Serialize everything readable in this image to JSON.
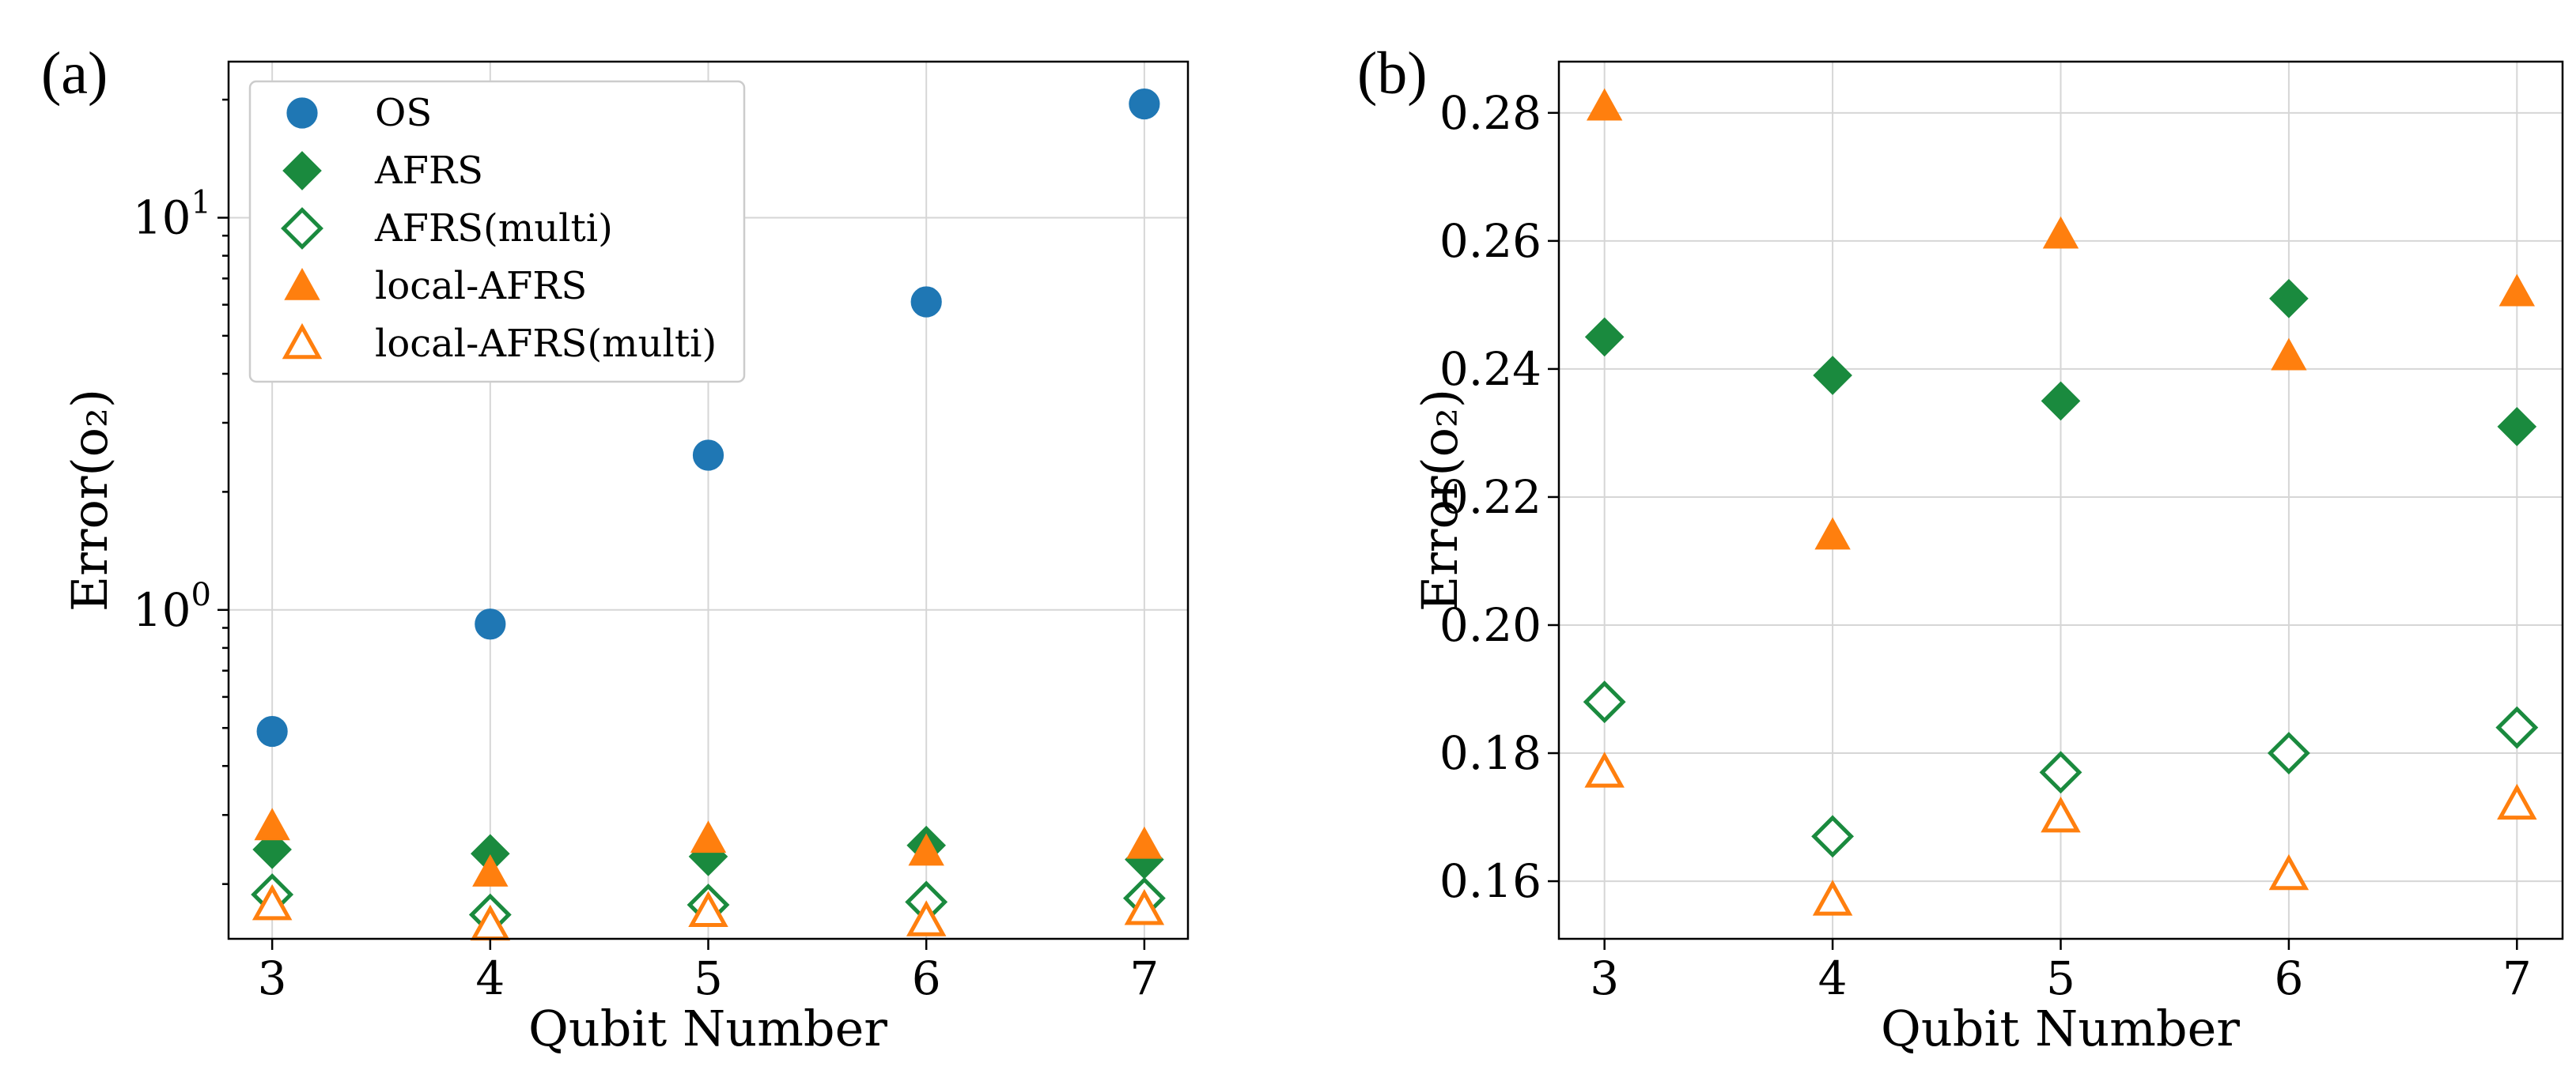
{
  "colors": {
    "OS": "#1f77b4",
    "AFRS": "#1a8a3e",
    "local-AFRS": "#ff7f0e"
  },
  "chart_data": [
    {
      "type": "scatter",
      "panel_label": "(a)",
      "xlabel": "Qubit Number",
      "ylabel": "Error(o₂)",
      "yscale": "log",
      "xlim": [
        2.8,
        7.2
      ],
      "ylim": [
        0.145,
        25
      ],
      "x_ticks": [
        3,
        4,
        5,
        6,
        7
      ],
      "y_ticks": [
        {
          "value": 1,
          "base": "10",
          "exp": "0"
        },
        {
          "value": 10,
          "base": "10",
          "exp": "1"
        }
      ],
      "grid": true,
      "legend_position": "upper-left",
      "series": [
        {
          "name": "OS",
          "marker": "circle",
          "fill": true,
          "color_key": "OS",
          "x": [
            3,
            4,
            5,
            6,
            7
          ],
          "y": [
            0.49,
            0.92,
            2.48,
            6.1,
            19.5
          ]
        },
        {
          "name": "AFRS",
          "marker": "diamond",
          "fill": true,
          "color_key": "AFRS",
          "x": [
            3,
            4,
            5,
            6,
            7
          ],
          "y": [
            0.245,
            0.239,
            0.235,
            0.251,
            0.231
          ]
        },
        {
          "name": "AFRS(multi)",
          "marker": "diamond",
          "fill": false,
          "color_key": "AFRS",
          "x": [
            3,
            4,
            5,
            6,
            7
          ],
          "y": [
            0.188,
            0.167,
            0.177,
            0.18,
            0.184
          ]
        },
        {
          "name": "local-AFRS",
          "marker": "triangle",
          "fill": true,
          "color_key": "local-AFRS",
          "x": [
            3,
            4,
            5,
            6,
            7
          ],
          "y": [
            0.281,
            0.214,
            0.261,
            0.242,
            0.252
          ]
        },
        {
          "name": "local-AFRS(multi)",
          "marker": "triangle",
          "fill": false,
          "color_key": "local-AFRS",
          "x": [
            3,
            4,
            5,
            6,
            7
          ],
          "y": [
            0.177,
            0.157,
            0.17,
            0.161,
            0.172
          ]
        }
      ]
    },
    {
      "type": "scatter",
      "panel_label": "(b)",
      "xlabel": "Qubit Number",
      "ylabel": "Error(o₂)",
      "yscale": "linear",
      "xlim": [
        2.8,
        7.2
      ],
      "ylim": [
        0.151,
        0.288
      ],
      "x_ticks": [
        3,
        4,
        5,
        6,
        7
      ],
      "y_ticks": [
        {
          "value": 0.16,
          "label": "0.16"
        },
        {
          "value": 0.18,
          "label": "0.18"
        },
        {
          "value": 0.2,
          "label": "0.20"
        },
        {
          "value": 0.22,
          "label": "0.22"
        },
        {
          "value": 0.24,
          "label": "0.24"
        },
        {
          "value": 0.26,
          "label": "0.26"
        },
        {
          "value": 0.28,
          "label": "0.28"
        }
      ],
      "grid": true,
      "series": [
        {
          "name": "AFRS",
          "marker": "diamond",
          "fill": true,
          "color_key": "AFRS",
          "x": [
            3,
            4,
            5,
            6,
            7
          ],
          "y": [
            0.245,
            0.239,
            0.235,
            0.251,
            0.231
          ]
        },
        {
          "name": "AFRS(multi)",
          "marker": "diamond",
          "fill": false,
          "color_key": "AFRS",
          "x": [
            3,
            4,
            5,
            6,
            7
          ],
          "y": [
            0.188,
            0.167,
            0.177,
            0.18,
            0.184
          ]
        },
        {
          "name": "local-AFRS",
          "marker": "triangle",
          "fill": true,
          "color_key": "local-AFRS",
          "x": [
            3,
            4,
            5,
            6,
            7
          ],
          "y": [
            0.281,
            0.214,
            0.261,
            0.242,
            0.252
          ]
        },
        {
          "name": "local-AFRS(multi)",
          "marker": "triangle",
          "fill": false,
          "color_key": "local-AFRS",
          "x": [
            3,
            4,
            5,
            6,
            7
          ],
          "y": [
            0.177,
            0.157,
            0.17,
            0.161,
            0.172
          ]
        }
      ]
    }
  ]
}
